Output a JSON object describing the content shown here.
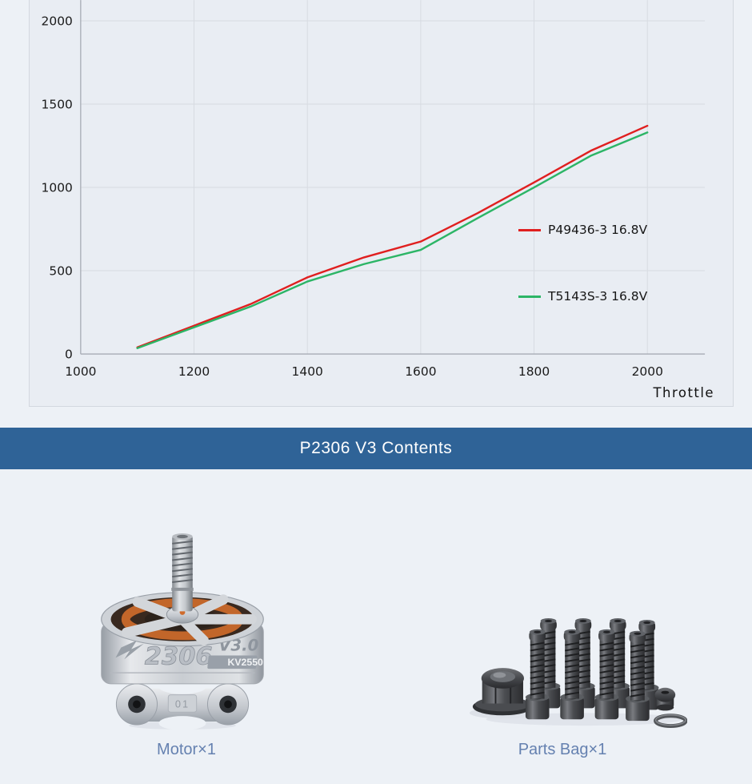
{
  "page": {
    "bg": "#edf1f6"
  },
  "chart": {
    "xlabel": "Throttle",
    "x_ticks": [
      1000,
      1200,
      1400,
      1600,
      1800,
      2000
    ],
    "y_ticks": [
      0,
      500,
      1000,
      1500,
      2000
    ],
    "legend": [
      {
        "label": "P49436-3 16.8V",
        "color": "#e01f1f"
      },
      {
        "label": "T5143S-3 16.8V",
        "color": "#2cb566"
      }
    ],
    "colors": {
      "panel_bg": "#e9edf3",
      "panel_border": "#d3d8df",
      "grid": "#d7dbe2",
      "axis": "#a7acb5",
      "tick_text": "#1b1b1b"
    }
  },
  "chart_data": {
    "type": "line",
    "title": "",
    "xlabel": "Throttle",
    "ylabel": "",
    "x": [
      1100,
      1200,
      1300,
      1400,
      1500,
      1600,
      1700,
      1800,
      1900,
      2000
    ],
    "series": [
      {
        "name": "P49436-3 16.8V",
        "color": "#e01f1f",
        "values": [
          40,
          170,
          300,
          460,
          580,
          675,
          845,
          1030,
          1220,
          1370
        ]
      },
      {
        "name": "T5143S-3 16.8V",
        "color": "#2cb566",
        "values": [
          35,
          160,
          285,
          435,
          540,
          625,
          815,
          1000,
          1190,
          1330
        ]
      }
    ],
    "xlim": [
      1000,
      2100
    ],
    "ylim": [
      0,
      2100
    ],
    "grid": true,
    "legend_position": "middle-right"
  },
  "banner": {
    "title": "P2306 V3 Contents",
    "bg": "#2f6397",
    "text_color": "#ffffff"
  },
  "contents": {
    "caption_color": "#6581b0",
    "motor": {
      "caption": "Motor×1",
      "engraving_model": "2306",
      "engraving_version": "V3.0",
      "engraving_kv": "KV2550",
      "engraving_base": "01"
    },
    "parts": {
      "caption": "Parts Bag×1"
    }
  }
}
